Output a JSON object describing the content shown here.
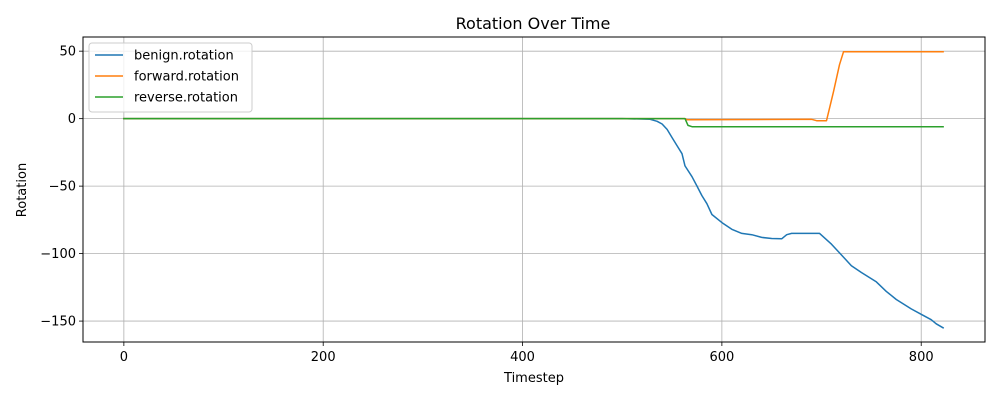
{
  "chart_data": {
    "type": "line",
    "title": "Rotation Over Time",
    "xlabel": "Timestep",
    "ylabel": "Rotation",
    "xlim": [
      -41,
      864
    ],
    "ylim": [
      -165.5,
      60.5
    ],
    "xticks": [
      0,
      200,
      400,
      600,
      800
    ],
    "yticks": [
      50,
      0,
      -50,
      -100,
      -150
    ],
    "ytick_labels": [
      "50",
      "0",
      "−50",
      "−100",
      "−150"
    ],
    "grid": true,
    "legend_position": "upper-left",
    "series": [
      {
        "name": "benign.rotation",
        "color": "#1f77b4",
        "points": [
          [
            0,
            0
          ],
          [
            500,
            0
          ],
          [
            528,
            -0.5
          ],
          [
            535,
            -2
          ],
          [
            540,
            -4
          ],
          [
            545,
            -8
          ],
          [
            550,
            -14
          ],
          [
            555,
            -20
          ],
          [
            560,
            -26
          ],
          [
            563,
            -35
          ],
          [
            570,
            -43
          ],
          [
            575,
            -50
          ],
          [
            580,
            -57
          ],
          [
            585,
            -63
          ],
          [
            590,
            -71
          ],
          [
            600,
            -77
          ],
          [
            610,
            -82
          ],
          [
            620,
            -85
          ],
          [
            630,
            -86
          ],
          [
            640,
            -88
          ],
          [
            650,
            -88.8
          ],
          [
            660,
            -89
          ],
          [
            665,
            -86
          ],
          [
            670,
            -85
          ],
          [
            680,
            -85
          ],
          [
            698,
            -85
          ],
          [
            710,
            -93
          ],
          [
            720,
            -101
          ],
          [
            730,
            -109
          ],
          [
            740,
            -114
          ],
          [
            755,
            -121
          ],
          [
            765,
            -128
          ],
          [
            775,
            -134
          ],
          [
            790,
            -141
          ],
          [
            800,
            -145
          ],
          [
            810,
            -149
          ],
          [
            815,
            -152
          ],
          [
            822,
            -155
          ]
        ]
      },
      {
        "name": "forward.rotation",
        "color": "#ff7f0e",
        "points": [
          [
            0,
            0
          ],
          [
            563,
            0
          ],
          [
            565,
            -0.8
          ],
          [
            690,
            -0.5
          ],
          [
            695,
            -1.5
          ],
          [
            705,
            -1.5
          ],
          [
            712,
            20
          ],
          [
            718,
            40
          ],
          [
            722,
            49.5
          ],
          [
            822,
            49.5
          ]
        ]
      },
      {
        "name": "reverse.rotation",
        "color": "#2ca02c",
        "points": [
          [
            0,
            0
          ],
          [
            563,
            0
          ],
          [
            566,
            -5
          ],
          [
            570,
            -6
          ],
          [
            822,
            -6
          ]
        ]
      }
    ]
  }
}
